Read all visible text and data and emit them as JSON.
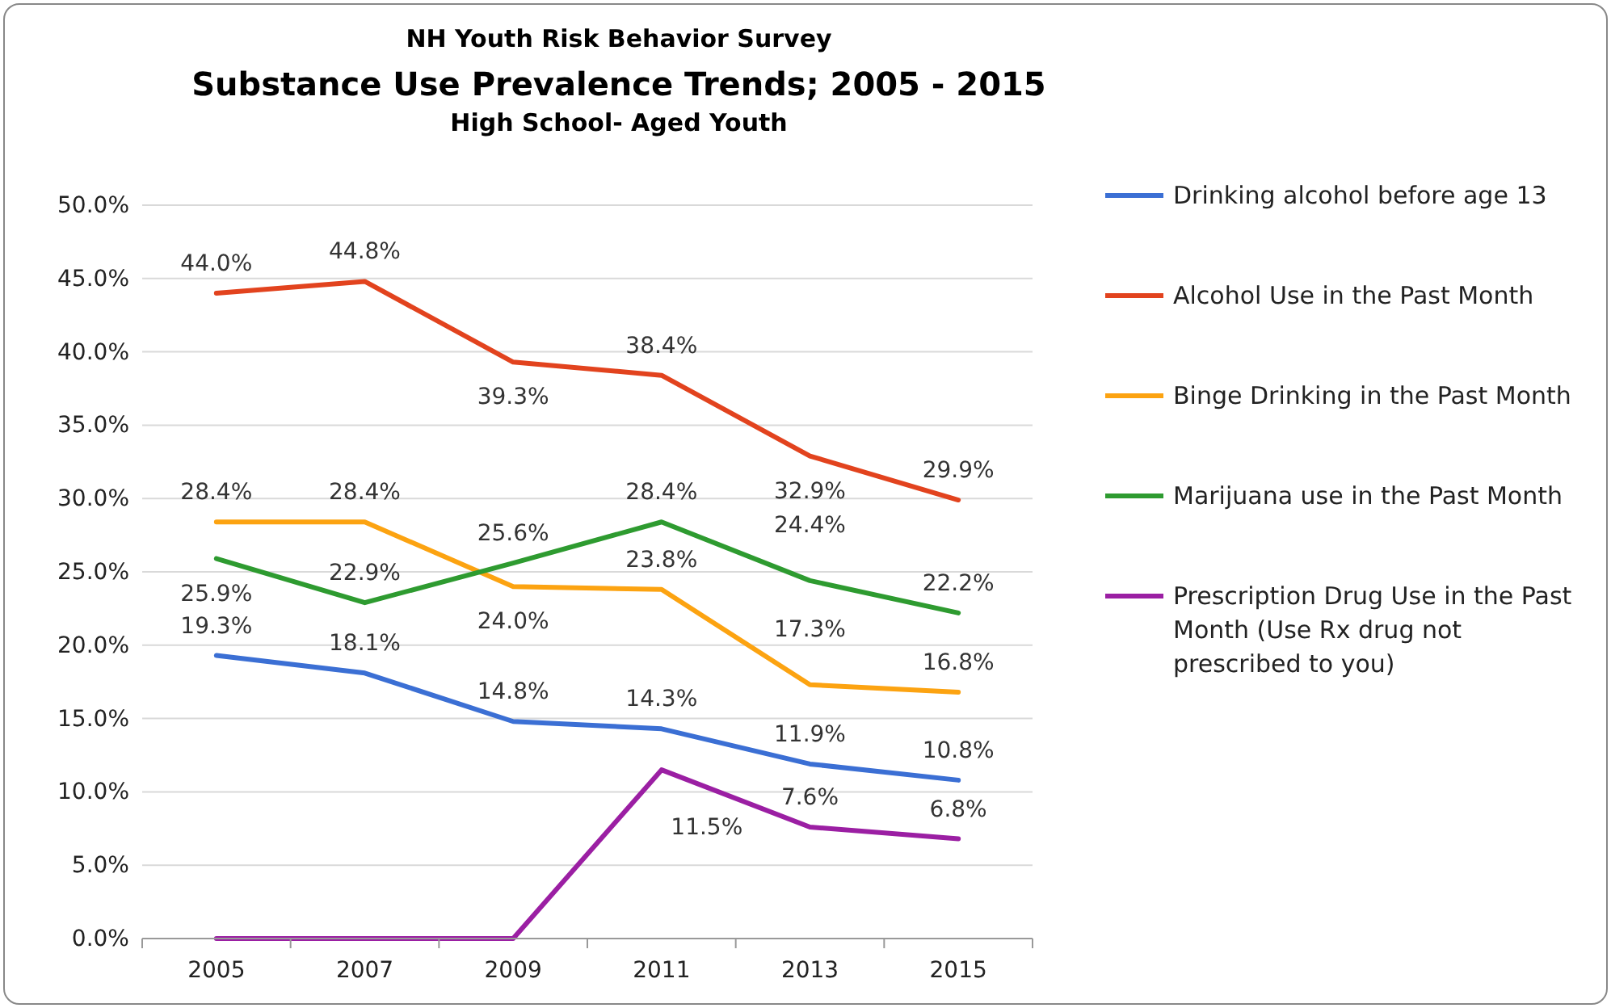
{
  "chart_data": {
    "type": "line",
    "title": "Substance Use Prevalence Trends; 2005 - 2015",
    "subtitle": "High School- Aged Youth",
    "annotations": [
      "NH Youth Risk Behavior Survey"
    ],
    "categories": [
      "2005",
      "2007",
      "2009",
      "2011",
      "2013",
      "2015"
    ],
    "series": [
      {
        "name": "Drinking alcohol before age 13",
        "color": "#3b6fd4",
        "values": [
          19.3,
          18.1,
          14.8,
          14.3,
          11.9,
          10.8
        ],
        "value_labels": [
          "19.3%",
          "18.1%",
          "14.8%",
          "14.3%",
          "11.9%",
          "10.8%"
        ]
      },
      {
        "name": "Alcohol Use in the Past Month",
        "color": "#e2431e",
        "values": [
          44.0,
          44.8,
          39.3,
          38.4,
          32.9,
          29.9
        ],
        "value_labels": [
          "44.0%",
          "44.8%",
          "39.3%",
          "38.4%",
          "32.9%",
          "29.9%"
        ]
      },
      {
        "name": "Binge Drinking in the Past Month",
        "color": "#fca311",
        "values": [
          28.4,
          28.4,
          24.0,
          23.8,
          17.3,
          16.8
        ],
        "value_labels": [
          "28.4%",
          "28.4%",
          "24.0%",
          "23.8%",
          "17.3%",
          "16.8%"
        ]
      },
      {
        "name": "Marijuana use in the Past Month",
        "color": "#2e9b30",
        "values": [
          25.9,
          22.9,
          25.6,
          28.4,
          24.4,
          22.2
        ],
        "value_labels": [
          "25.9%",
          "22.9%",
          "25.6%",
          "28.4%",
          "24.4%",
          "22.2%"
        ]
      },
      {
        "name": "Prescription Drug Use in the Past Month (Use Rx drug not prescribed to you)",
        "color": "#9b1fa3",
        "values": [
          0,
          0,
          0,
          11.5,
          7.6,
          6.8
        ],
        "value_labels": [
          null,
          null,
          null,
          "11.5%",
          "7.6%",
          "6.8%"
        ]
      }
    ],
    "ylim": [
      0,
      50
    ],
    "yticks": [
      {
        "value": 0,
        "label": "0.0%"
      },
      {
        "value": 5,
        "label": "5.0%"
      },
      {
        "value": 10,
        "label": "10.0%"
      },
      {
        "value": 15,
        "label": "15.0%"
      },
      {
        "value": 20,
        "label": "20.0%"
      },
      {
        "value": 25,
        "label": "25.0%"
      },
      {
        "value": 30,
        "label": "30.0%"
      },
      {
        "value": 35,
        "label": "35.0%"
      },
      {
        "value": 40,
        "label": "40.0%"
      },
      {
        "value": 45,
        "label": "45.0%"
      },
      {
        "value": 50,
        "label": "50.0%"
      }
    ],
    "grid": "y",
    "legend": "right",
    "marker": "none",
    "line_style": "solid"
  }
}
